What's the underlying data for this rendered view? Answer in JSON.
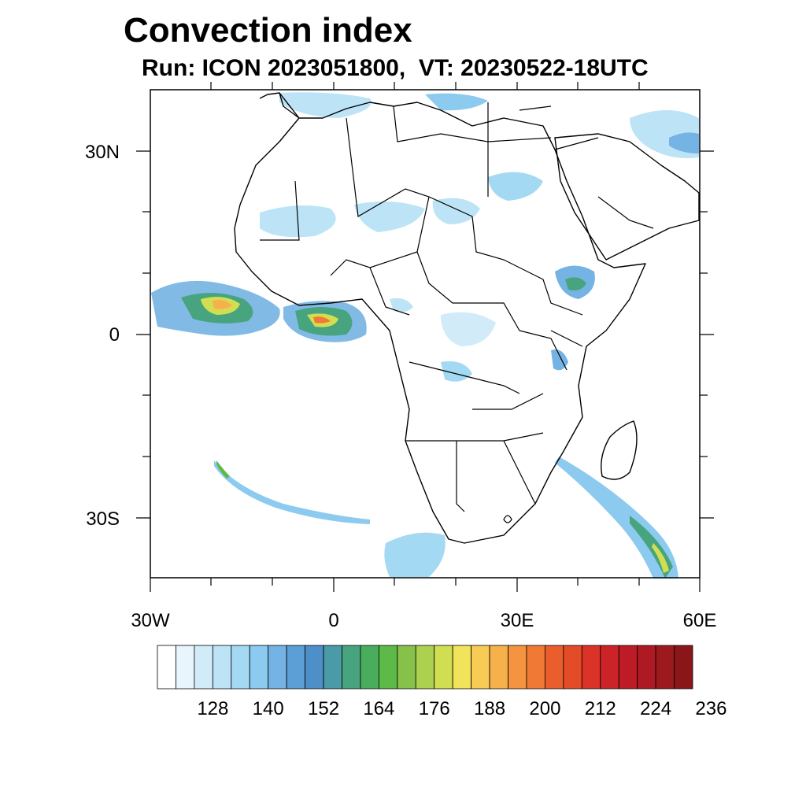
{
  "title": "Convection index",
  "subtitle": "Run: ICON 2023051800,  VT: 20230522-18UTC",
  "map": {
    "lon_range": [
      -30,
      60
    ],
    "lat_range": [
      -40,
      40
    ],
    "lat_ticks": [
      {
        "value": 30,
        "label": "30N"
      },
      {
        "value": 0,
        "label": "0"
      },
      {
        "value": -30,
        "label": "30S"
      }
    ],
    "lon_ticks": [
      {
        "value": -30,
        "label": "30W"
      },
      {
        "value": 0,
        "label": "0"
      },
      {
        "value": 30,
        "label": "30E"
      },
      {
        "value": 60,
        "label": "60E"
      }
    ],
    "field": "Convection index"
  },
  "colorbar": {
    "labels": [
      "128",
      "140",
      "152",
      "164",
      "176",
      "188",
      "200",
      "212",
      "224",
      "236"
    ],
    "colors": [
      "#ffffff",
      "#e8f5fc",
      "#d2ebf8",
      "#bde3f6",
      "#a4d9f3",
      "#8ccaef",
      "#74b3e3",
      "#5c9fd6",
      "#4d8fc9",
      "#4a9aa8",
      "#48a47f",
      "#4aad5e",
      "#5dba48",
      "#86c24a",
      "#acd14f",
      "#d2de52",
      "#f1e45a",
      "#f8cc54",
      "#f7b14c",
      "#f59440",
      "#f07a35",
      "#ea5d2c",
      "#e44b27",
      "#db3328",
      "#cc2328",
      "#bd1c26",
      "#ad1a23",
      "#9c1a1e",
      "#8a161a"
    ]
  }
}
